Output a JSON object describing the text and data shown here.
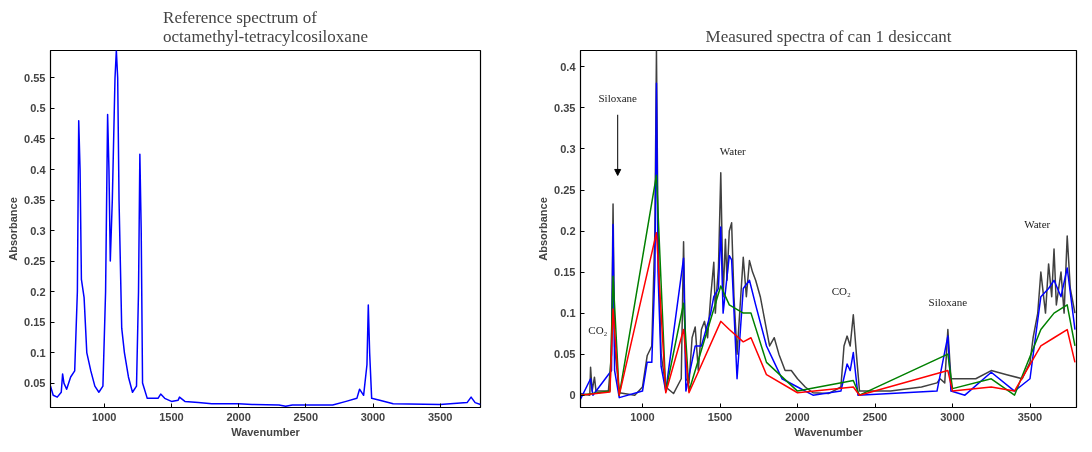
{
  "chart_data": [
    {
      "type": "line",
      "title": "Reference spectrum of\noctamethyl-tetracylcosiloxane",
      "xlabel": "Wavenumber",
      "ylabel": "Absorbance",
      "xlim": [
        600,
        3800
      ],
      "ylim": [
        0.01,
        0.595
      ],
      "xticks": [
        1000,
        1500,
        2000,
        2500,
        3000,
        3500
      ],
      "yticks": [
        0.05,
        0.1,
        0.15,
        0.2,
        0.25,
        0.3,
        0.35,
        0.4,
        0.45,
        0.5,
        0.55
      ],
      "grid": false,
      "x": [
        600,
        620,
        650,
        680,
        690,
        700,
        720,
        750,
        780,
        800,
        810,
        820,
        830,
        850,
        870,
        900,
        930,
        960,
        990,
        1010,
        1025,
        1035,
        1045,
        1060,
        1080,
        1090,
        1100,
        1110,
        1130,
        1150,
        1180,
        1210,
        1240,
        1255,
        1265,
        1275,
        1285,
        1320,
        1400,
        1420,
        1450,
        1500,
        1550,
        1560,
        1600,
        1700,
        1800,
        2000,
        2100,
        2300,
        2350,
        2400,
        2700,
        2800,
        2880,
        2900,
        2930,
        2955,
        2965,
        2975,
        2990,
        3050,
        3150,
        3500,
        3700,
        3730,
        3760,
        3800
      ],
      "series": [
        {
          "color": "#0000ff",
          "values": [
            0.045,
            0.03,
            0.027,
            0.035,
            0.065,
            0.05,
            0.04,
            0.06,
            0.07,
            0.2,
            0.48,
            0.4,
            0.22,
            0.19,
            0.1,
            0.07,
            0.045,
            0.035,
            0.045,
            0.2,
            0.49,
            0.4,
            0.25,
            0.35,
            0.55,
            0.595,
            0.55,
            0.35,
            0.14,
            0.1,
            0.06,
            0.035,
            0.045,
            0.2,
            0.425,
            0.3,
            0.05,
            0.025,
            0.025,
            0.032,
            0.025,
            0.02,
            0.022,
            0.027,
            0.02,
            0.018,
            0.016,
            0.016,
            0.015,
            0.014,
            0.012,
            0.014,
            0.014,
            0.02,
            0.025,
            0.04,
            0.03,
            0.08,
            0.178,
            0.1,
            0.025,
            0.022,
            0.016,
            0.015,
            0.018,
            0.027,
            0.018,
            0.015
          ]
        }
      ]
    },
    {
      "type": "line",
      "title": "Measured spectra of can 1 desiccant",
      "xlabel": "Wavenumber",
      "ylabel": "Absorbance",
      "xlim": [
        600,
        3800
      ],
      "ylim": [
        -0.015,
        0.42
      ],
      "xticks": [
        1000,
        1500,
        2000,
        2500,
        3000,
        3500
      ],
      "yticks": [
        0,
        0.05,
        0.1,
        0.15,
        0.2,
        0.25,
        0.3,
        0.35,
        0.4
      ],
      "grid": false,
      "annotations": [
        "CO₂",
        "Siloxane",
        {
          "text": "Water",
          "x": 1505,
          "y": 0.271
        },
        {
          "text": "CO₂",
          "x": 2360,
          "y": 0.098
        },
        {
          "text": "Siloxane",
          "x": 2970,
          "y": 0.08
        },
        {
          "text": "Water",
          "x": 3740,
          "y": 0.194
        }
      ],
      "series": [
        {
          "color": "#404040",
          "x": [
            600,
            660,
            665,
            675,
            690,
            700,
            780,
            800,
            810,
            820,
            850,
            950,
            1000,
            1030,
            1060,
            1080,
            1090,
            1100,
            1120,
            1150,
            1200,
            1250,
            1265,
            1280,
            1300,
            1320,
            1340,
            1360,
            1380,
            1400,
            1420,
            1440,
            1460,
            1470,
            1480,
            1490,
            1505,
            1520,
            1535,
            1545,
            1560,
            1575,
            1590,
            1610,
            1650,
            1670,
            1690,
            1710,
            1730,
            1760,
            1800,
            1820,
            1850,
            1880,
            1920,
            1960,
            2000,
            2050,
            2100,
            2200,
            2280,
            2300,
            2320,
            2340,
            2360,
            2380,
            2400,
            2600,
            2800,
            2900,
            2920,
            2950,
            2970,
            2990,
            3050,
            3150,
            3250,
            3350,
            3450,
            3500,
            3520,
            3550,
            3570,
            3600,
            3620,
            3640,
            3655,
            3670,
            3700,
            3720,
            3740,
            3760,
            3790
          ],
          "values": [
            0.002,
            0.0,
            0.034,
            0.005,
            0.022,
            0.005,
            0.005,
            0.05,
            0.233,
            0.06,
            0.003,
            0.0,
            0.01,
            0.048,
            0.06,
            0.2,
            0.42,
            0.2,
            0.05,
            0.01,
            0.002,
            0.02,
            0.187,
            0.02,
            0.015,
            0.07,
            0.083,
            0.03,
            0.08,
            0.09,
            0.07,
            0.12,
            0.162,
            0.1,
            0.13,
            0.155,
            0.271,
            0.12,
            0.19,
            0.14,
            0.2,
            0.21,
            0.12,
            0.05,
            0.168,
            0.12,
            0.164,
            0.15,
            0.14,
            0.12,
            0.08,
            0.06,
            0.07,
            0.05,
            0.03,
            0.03,
            0.02,
            0.01,
            0.003,
            0.002,
            0.01,
            0.06,
            0.072,
            0.06,
            0.098,
            0.05,
            0.005,
            0.005,
            0.01,
            0.015,
            0.02,
            0.015,
            0.08,
            0.02,
            0.02,
            0.02,
            0.03,
            0.025,
            0.02,
            0.04,
            0.07,
            0.1,
            0.15,
            0.1,
            0.16,
            0.12,
            0.178,
            0.11,
            0.15,
            0.1,
            0.194,
            0.13,
            0.1
          ]
        },
        {
          "color": "#0000ff",
          "x": [
            600,
            665,
            680,
            800,
            810,
            820,
            850,
            1000,
            1030,
            1060,
            1080,
            1090,
            1100,
            1120,
            1150,
            1265,
            1280,
            1340,
            1380,
            1440,
            1460,
            1490,
            1505,
            1520,
            1560,
            1575,
            1610,
            1650,
            1690,
            1730,
            1800,
            1850,
            1900,
            2000,
            2100,
            2280,
            2320,
            2340,
            2360,
            2390,
            2600,
            2900,
            2970,
            2990,
            3080,
            3250,
            3400,
            3500,
            3570,
            3620,
            3655,
            3700,
            3740,
            3790
          ],
          "values": [
            -0.005,
            0.02,
            0.0,
            0.03,
            0.208,
            0.03,
            -0.003,
            0.005,
            0.04,
            0.04,
            0.15,
            0.38,
            0.15,
            0.035,
            0.005,
            0.167,
            0.005,
            0.06,
            0.06,
            0.1,
            0.12,
            0.13,
            0.205,
            0.1,
            0.17,
            0.165,
            0.02,
            0.13,
            0.14,
            0.11,
            0.06,
            0.04,
            0.02,
            0.01,
            0.0,
            0.005,
            0.038,
            0.03,
            0.052,
            0.0,
            0.002,
            0.005,
            0.072,
            0.005,
            0.0,
            0.028,
            0.005,
            0.02,
            0.12,
            0.13,
            0.14,
            0.12,
            0.155,
            0.08
          ]
        },
        {
          "color": "#008000",
          "x": [
            600,
            790,
            810,
            850,
            1090,
            1150,
            1265,
            1300,
            1505,
            1560,
            1650,
            1700,
            1800,
            2000,
            2360,
            2400,
            2970,
            3000,
            3250,
            3400,
            3570,
            3655,
            3740,
            3790
          ],
          "values": [
            0.0,
            0.005,
            0.145,
            0.0,
            0.268,
            0.005,
            0.112,
            0.005,
            0.133,
            0.11,
            0.1,
            0.1,
            0.04,
            0.005,
            0.018,
            0.0,
            0.05,
            0.008,
            0.02,
            0.0,
            0.08,
            0.1,
            0.11,
            0.06
          ]
        },
        {
          "color": "#ff0000",
          "x": [
            600,
            790,
            810,
            850,
            1090,
            1150,
            1265,
            1300,
            1505,
            1560,
            1650,
            1700,
            1800,
            2000,
            2360,
            2400,
            2970,
            3000,
            3250,
            3400,
            3570,
            3655,
            3740,
            3790
          ],
          "values": [
            0.0,
            0.004,
            0.105,
            0.0,
            0.198,
            0.003,
            0.08,
            0.003,
            0.09,
            0.08,
            0.065,
            0.07,
            0.025,
            0.003,
            0.01,
            0.0,
            0.03,
            0.005,
            0.01,
            0.005,
            0.06,
            0.07,
            0.08,
            0.04
          ]
        }
      ]
    }
  ]
}
